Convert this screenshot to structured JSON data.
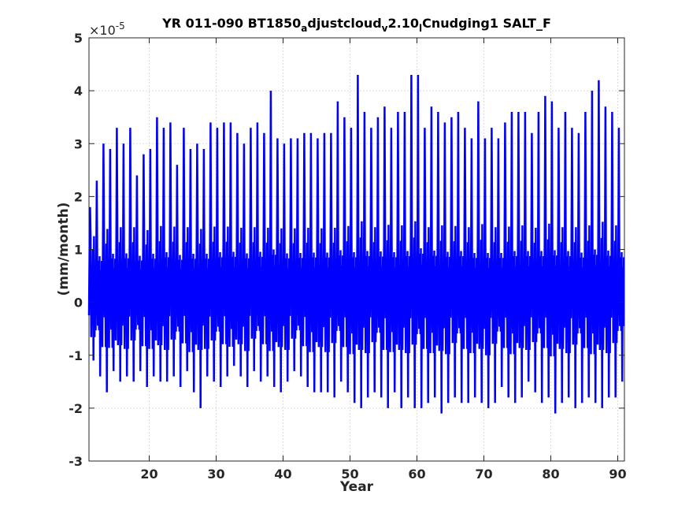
{
  "chart_data": {
    "type": "line",
    "title_parts": [
      {
        "text": "YR 011-090 BT1850",
        "pos": "normal"
      },
      {
        "text": "a",
        "pos": "sub"
      },
      {
        "text": "djustcloud",
        "pos": "normal"
      },
      {
        "text": "v",
        "pos": "sub"
      },
      {
        "text": "2.10",
        "pos": "normal"
      },
      {
        "text": "l",
        "pos": "sub"
      },
      {
        "text": "Cnudging1 SALT_F",
        "pos": "normal"
      }
    ],
    "xlabel": "Year",
    "ylabel": "(mm/month)",
    "y_multiplier_label": "×10",
    "y_multiplier_exponent": "-5",
    "xlim": [
      11,
      91
    ],
    "ylim": [
      -3,
      5
    ],
    "x_ticks": [
      20,
      30,
      40,
      50,
      60,
      70,
      80,
      90
    ],
    "x_tick_labels": [
      "20",
      "30",
      "40",
      "50",
      "60",
      "70",
      "80",
      "90"
    ],
    "y_ticks": [
      -3,
      -2,
      -1,
      0,
      1,
      2,
      3,
      4,
      5
    ],
    "y_tick_labels": [
      "-3",
      "-2",
      "-1",
      "0",
      "1",
      "2",
      "3",
      "4",
      "5"
    ],
    "grid": true,
    "series": [
      {
        "color": "#0000ff",
        "samples_per_year": 12,
        "annual_max": [
          1.8,
          2.3,
          3.0,
          2.9,
          3.3,
          3.0,
          3.3,
          2.4,
          2.8,
          2.9,
          3.5,
          3.3,
          3.4,
          2.6,
          3.3,
          2.9,
          3.0,
          2.9,
          3.4,
          3.3,
          3.4,
          3.4,
          3.2,
          3.0,
          3.3,
          3.4,
          3.2,
          4.0,
          3.1,
          3.0,
          3.1,
          3.1,
          3.2,
          3.2,
          3.1,
          3.2,
          3.2,
          3.8,
          3.5,
          3.3,
          4.3,
          3.6,
          3.3,
          3.5,
          3.7,
          3.3,
          3.6,
          3.6,
          4.3,
          4.3,
          3.3,
          3.7,
          3.6,
          3.4,
          3.5,
          3.6,
          3.3,
          3.1,
          3.8,
          3.1,
          3.3,
          3.1,
          3.4,
          3.6,
          3.6,
          3.6,
          3.2,
          3.6,
          3.9,
          3.8,
          3.3,
          3.6,
          3.3,
          3.2,
          3.6,
          4.0,
          4.2,
          3.7,
          3.6,
          3.3
        ],
        "annual_min": [
          -1.1,
          -1.4,
          -1.7,
          -1.3,
          -1.5,
          -1.4,
          -1.5,
          -1.3,
          -1.6,
          -1.4,
          -1.5,
          -1.5,
          -1.4,
          -1.6,
          -1.3,
          -1.7,
          -2.0,
          -1.4,
          -1.5,
          -1.6,
          -1.4,
          -1.2,
          -1.4,
          -1.6,
          -1.3,
          -1.5,
          -1.4,
          -1.6,
          -1.7,
          -1.5,
          -1.3,
          -1.4,
          -1.6,
          -1.7,
          -1.7,
          -1.7,
          -1.8,
          -1.5,
          -1.7,
          -1.9,
          -2.0,
          -1.8,
          -1.7,
          -1.8,
          -2.0,
          -1.7,
          -2.0,
          -1.8,
          -2.0,
          -2.0,
          -1.9,
          -1.8,
          -2.1,
          -1.9,
          -1.8,
          -1.9,
          -1.9,
          -1.8,
          -1.9,
          -2.0,
          -1.9,
          -1.6,
          -1.8,
          -1.9,
          -1.8,
          -1.5,
          -1.7,
          -1.9,
          -1.8,
          -2.1,
          -1.9,
          -1.8,
          -2.0,
          -1.9,
          -1.8,
          -1.9,
          -2.0,
          -1.8,
          -1.8,
          -1.5
        ]
      }
    ]
  }
}
